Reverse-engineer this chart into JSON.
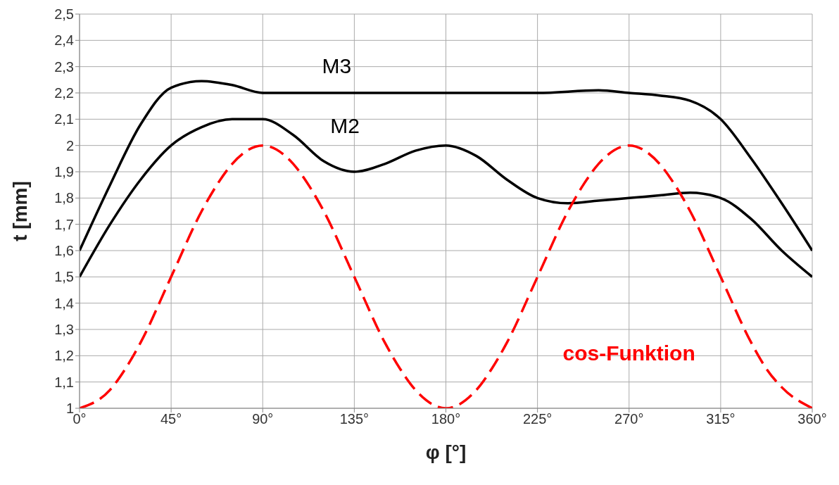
{
  "chart_data": {
    "type": "line",
    "xlabel": "φ [°]",
    "ylabel": "t [mm]",
    "xlim": [
      0,
      360
    ],
    "xticks": [
      {
        "value": 0,
        "label": "0°"
      },
      {
        "value": 45,
        "label": "45°"
      },
      {
        "value": 90,
        "label": "90°"
      },
      {
        "value": 135,
        "label": "135°"
      },
      {
        "value": 180,
        "label": "180°"
      },
      {
        "value": 225,
        "label": "225°"
      },
      {
        "value": 270,
        "label": "270°"
      },
      {
        "value": 315,
        "label": "315°"
      },
      {
        "value": 360,
        "label": "360°"
      }
    ],
    "ylim": [
      1,
      2.5
    ],
    "yticks": [
      1,
      {
        "value": 1.1,
        "label": "1,1"
      },
      {
        "value": 1.2,
        "label": "1,2"
      },
      {
        "value": 1.3,
        "label": "1,3"
      },
      {
        "value": 1.4,
        "label": "1,4"
      },
      {
        "value": 1.5,
        "label": "1,5"
      },
      {
        "value": 1.6,
        "label": "1,6"
      },
      {
        "value": 1.7,
        "label": "1,7"
      },
      {
        "value": 1.8,
        "label": "1,8"
      },
      {
        "value": 1.9,
        "label": "1,9"
      },
      2,
      {
        "value": 2.1,
        "label": "2,1"
      },
      {
        "value": 2.2,
        "label": "2,2"
      },
      {
        "value": 2.3,
        "label": "2,3"
      },
      {
        "value": 2.4,
        "label": "2,4"
      },
      {
        "value": 2.5,
        "label": "2,5"
      }
    ],
    "grid": true,
    "marker": "none",
    "series": [
      {
        "name": "M3",
        "color": "#000000",
        "line_style": "solid",
        "x": [
          0,
          15,
          30,
          45,
          60,
          75,
          90,
          135,
          180,
          225,
          255,
          270,
          285,
          300,
          315,
          330,
          345,
          360
        ],
        "values": [
          1.6,
          1.85,
          2.08,
          2.22,
          2.245,
          2.23,
          2.2,
          2.2,
          2.2,
          2.2,
          2.21,
          2.2,
          2.19,
          2.17,
          2.1,
          1.95,
          1.78,
          1.6
        ]
      },
      {
        "name": "M2",
        "color": "#000000",
        "line_style": "solid",
        "x": [
          0,
          15,
          30,
          45,
          60,
          75,
          90,
          105,
          120,
          135,
          150,
          165,
          180,
          195,
          210,
          225,
          240,
          255,
          270,
          285,
          300,
          315,
          330,
          345,
          360
        ],
        "values": [
          1.5,
          1.7,
          1.87,
          2.0,
          2.07,
          2.1,
          2.1,
          2.04,
          1.94,
          1.9,
          1.93,
          1.98,
          2.0,
          1.96,
          1.87,
          1.8,
          1.78,
          1.79,
          1.8,
          1.81,
          1.82,
          1.8,
          1.72,
          1.6,
          1.5
        ]
      },
      {
        "name": "cos-Funktion",
        "color": "#ff0000",
        "line_style": "dashed",
        "x": [
          0,
          15,
          22.5,
          30,
          45,
          60,
          67.5,
          75,
          90,
          105,
          112.5,
          120,
          135,
          150,
          157.5,
          165,
          180,
          195,
          202.5,
          210,
          225,
          240,
          247.5,
          255,
          270,
          285,
          292.5,
          300,
          315,
          330,
          337.5,
          345,
          360
        ],
        "values": [
          1,
          1.07,
          1.15,
          1.25,
          1.5,
          1.75,
          1.85,
          1.93,
          2,
          1.93,
          1.85,
          1.75,
          1.5,
          1.25,
          1.15,
          1.07,
          1,
          1.07,
          1.15,
          1.25,
          1.5,
          1.75,
          1.85,
          1.93,
          2,
          1.93,
          1.85,
          1.75,
          1.5,
          1.25,
          1.15,
          1.08,
          1
        ]
      }
    ]
  }
}
